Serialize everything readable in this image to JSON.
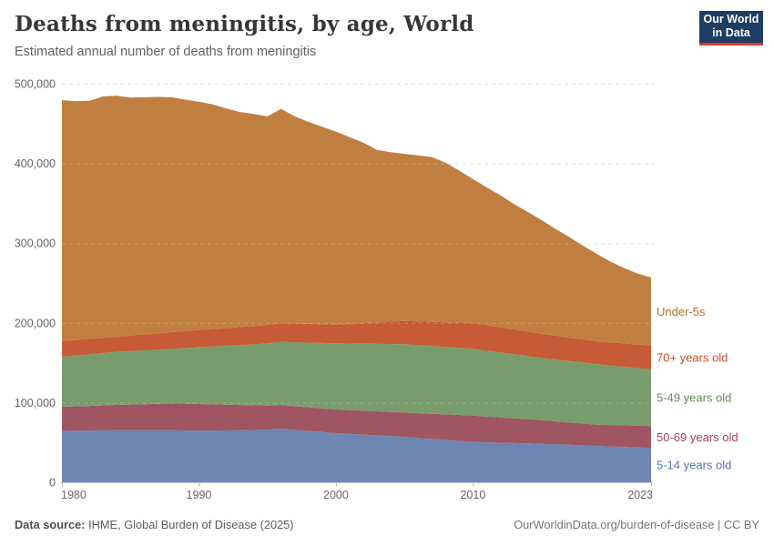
{
  "header": {
    "title": "Deaths from meningitis, by age, World",
    "subtitle": "Estimated annual number of deaths from meningitis"
  },
  "logo": {
    "line1": "Our World",
    "line2": "in Data",
    "bg_color": "#1d3d63",
    "accent_color": "#e0392f"
  },
  "footer": {
    "source_label": "Data source:",
    "source_text": " IHME, Global Burden of Disease (2025)",
    "link_text": "OurWorldinData.org/burden-of-disease | CC BY"
  },
  "chart_data": {
    "type": "area",
    "stacked": true,
    "title": "Deaths from meningitis, by age, World",
    "xlabel": "",
    "ylabel": "",
    "ylim": [
      0,
      500000
    ],
    "grid": "horizontal-dashed",
    "legend_position": "right-edge-inline-labels",
    "x": [
      1980,
      1981,
      1982,
      1983,
      1984,
      1985,
      1986,
      1987,
      1988,
      1989,
      1990,
      1991,
      1992,
      1993,
      1994,
      1995,
      1996,
      1997,
      1998,
      1999,
      2000,
      2001,
      2002,
      2003,
      2004,
      2005,
      2006,
      2007,
      2008,
      2009,
      2010,
      2011,
      2012,
      2013,
      2014,
      2015,
      2016,
      2017,
      2018,
      2019,
      2020,
      2021,
      2022,
      2023
    ],
    "x_ticks": [
      1980,
      1990,
      2000,
      2010,
      2023
    ],
    "y_ticks": [
      0,
      100000,
      200000,
      300000,
      400000,
      500000
    ],
    "y_tick_labels": [
      "0",
      "100,000",
      "200,000",
      "300,000",
      "400,000",
      "500,000"
    ],
    "series": [
      {
        "name": "5-14-years-old",
        "label": "5-14 years old",
        "color": "#6e86b2",
        "label_color": "#4e78b5",
        "values": [
          64500,
          64700,
          64900,
          65200,
          65400,
          65400,
          65400,
          65400,
          65400,
          65000,
          64700,
          64900,
          65100,
          65300,
          65600,
          66000,
          67400,
          65800,
          64400,
          63000,
          61600,
          60700,
          59800,
          58800,
          57900,
          57000,
          55700,
          54400,
          53100,
          51900,
          50600,
          50100,
          49700,
          49200,
          48800,
          48300,
          47700,
          47000,
          46400,
          45700,
          45000,
          44400,
          43700,
          43000
        ]
      },
      {
        "name": "50-69-years-old",
        "label": "50-69 years old",
        "color": "#a05562",
        "label_color": "#a8415a",
        "values": [
          30200,
          30600,
          30900,
          31300,
          31600,
          32100,
          32600,
          33100,
          33600,
          33600,
          33500,
          32900,
          32200,
          31600,
          30900,
          30300,
          29600,
          29600,
          29700,
          29700,
          29700,
          29900,
          30000,
          30200,
          30300,
          30500,
          31000,
          31500,
          32100,
          32600,
          33100,
          32400,
          31700,
          31100,
          30400,
          29700,
          28900,
          28100,
          27400,
          26600,
          26800,
          27000,
          27300,
          27500
        ]
      },
      {
        "name": "5-49-years-old",
        "label": "5-49 years old",
        "color": "#789c6c",
        "label_color": "#5d9150",
        "values": [
          62800,
          63800,
          64700,
          65700,
          66600,
          67100,
          67500,
          68000,
          68400,
          69800,
          71100,
          72500,
          73800,
          75200,
          76500,
          77900,
          79200,
          80200,
          81100,
          82100,
          83000,
          83500,
          84100,
          84600,
          85200,
          85700,
          85300,
          84900,
          84500,
          84100,
          83700,
          82600,
          81400,
          80300,
          79100,
          78000,
          77500,
          77000,
          76600,
          76100,
          74800,
          73500,
          72300,
          71000
        ]
      },
      {
        "name": "70-plus-years-old",
        "label": "70+ years old",
        "color": "#c75b35",
        "label_color": "#c44e28",
        "values": [
          19500,
          19400,
          19300,
          19100,
          19000,
          19500,
          20000,
          20400,
          20900,
          21300,
          21700,
          22000,
          22300,
          22700,
          23000,
          23300,
          23600,
          23600,
          23500,
          23500,
          23500,
          24600,
          25800,
          26900,
          28100,
          29200,
          29800,
          30500,
          31100,
          31800,
          32400,
          32000,
          31600,
          31200,
          30800,
          30400,
          29900,
          29400,
          29000,
          28500,
          28900,
          29300,
          29600,
          30000
        ]
      },
      {
        "name": "under-5s",
        "label": "Under-5s",
        "color": "#c07f40",
        "label_color": "#b06f2d",
        "values": [
          302500,
          299500,
          298700,
          302700,
          302400,
          298400,
          297500,
          296600,
          294700,
          290300,
          286500,
          281700,
          275600,
          269700,
          266000,
          261500,
          268700,
          259800,
          253300,
          247700,
          242200,
          234300,
          226300,
          216500,
          212500,
          209600,
          208200,
          206700,
          200200,
          190600,
          180700,
          172900,
          165600,
          157200,
          149900,
          142600,
          134000,
          126500,
          117600,
          110100,
          101500,
          94800,
          89100,
          85500
        ]
      }
    ]
  }
}
